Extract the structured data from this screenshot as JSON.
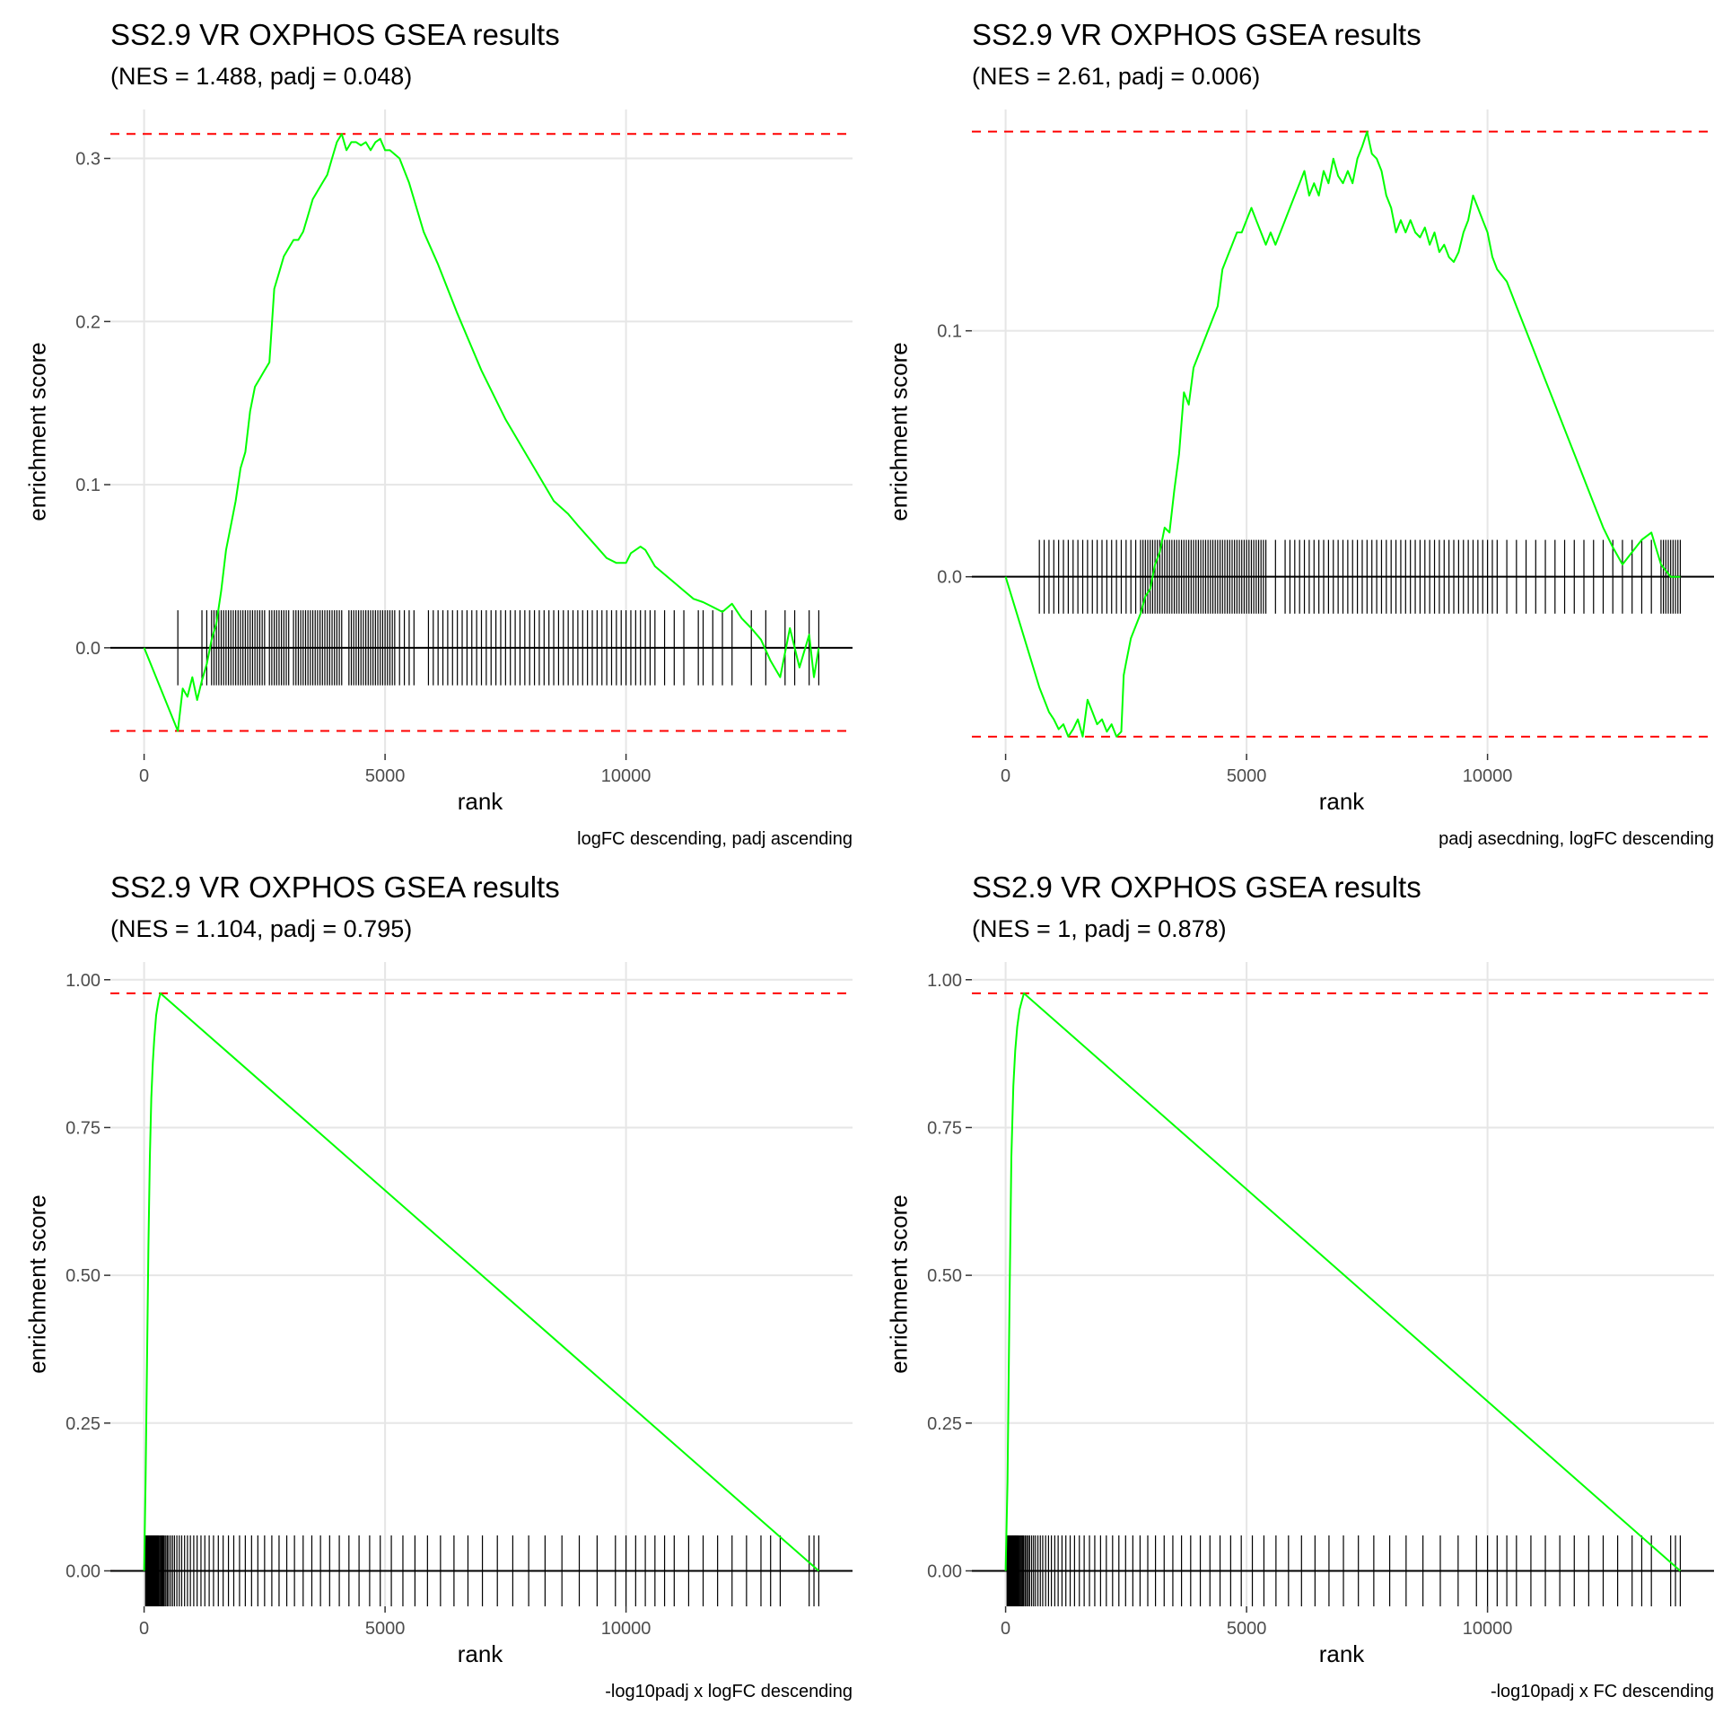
{
  "figure": {
    "colors": {
      "curve": "#00ff00",
      "bounds": "#ff0000",
      "ticks": "#000000",
      "grid": "#e6e6e6",
      "axis_text": "#4d4d4d"
    }
  },
  "chart_data": [
    {
      "type": "line",
      "title": "SS2.9 VR OXPHOS GSEA results",
      "subtitle": "(NES = 1.488, padj = 0.048)",
      "xlabel": "rank",
      "ylabel": "enrichment score",
      "caption": "logFC descending, padj ascending",
      "xlim": [
        -700,
        14700
      ],
      "ylim": [
        -0.065,
        0.33
      ],
      "xticks": [
        0,
        5000,
        10000
      ],
      "xtick_labels": [
        "0",
        "5000",
        "10000"
      ],
      "yticks": [
        0.0,
        0.1,
        0.2,
        0.3
      ],
      "ytick_labels": [
        "0.0",
        "0.1",
        "0.2",
        "0.3"
      ],
      "max_es": 0.315,
      "min_es": -0.051,
      "tick_halfheight": 0.023,
      "curve": {
        "x": [
          0,
          700,
          800,
          900,
          1000,
          1100,
          1200,
          1300,
          1400,
          1500,
          1600,
          1700,
          1800,
          1900,
          2000,
          2100,
          2200,
          2300,
          2400,
          2500,
          2600,
          2700,
          2800,
          2900,
          3000,
          3100,
          3200,
          3300,
          3400,
          3500,
          3600,
          3700,
          3800,
          3900,
          4000,
          4100,
          4200,
          4300,
          4400,
          4500,
          4600,
          4700,
          4800,
          4900,
          5000,
          5100,
          5300,
          5500,
          5800,
          6100,
          6500,
          7000,
          7500,
          8000,
          8500,
          8800,
          9000,
          9300,
          9600,
          9800,
          10000,
          10100,
          10200,
          10300,
          10400,
          10500,
          10600,
          10800,
          11000,
          11200,
          11400,
          11600,
          11800,
          12000,
          12200,
          12400,
          12600,
          12800,
          13000,
          13200,
          13400,
          13600,
          13800,
          13900,
          14000
        ],
        "y": [
          0.0,
          -0.051,
          -0.025,
          -0.03,
          -0.018,
          -0.032,
          -0.02,
          -0.01,
          0.005,
          0.015,
          0.035,
          0.06,
          0.075,
          0.09,
          0.11,
          0.12,
          0.145,
          0.16,
          0.165,
          0.17,
          0.175,
          0.22,
          0.23,
          0.24,
          0.245,
          0.25,
          0.25,
          0.255,
          0.265,
          0.275,
          0.28,
          0.285,
          0.29,
          0.3,
          0.31,
          0.315,
          0.305,
          0.31,
          0.31,
          0.308,
          0.31,
          0.305,
          0.31,
          0.312,
          0.305,
          0.305,
          0.3,
          0.285,
          0.255,
          0.235,
          0.205,
          0.17,
          0.14,
          0.115,
          0.09,
          0.082,
          0.075,
          0.065,
          0.055,
          0.052,
          0.052,
          0.058,
          0.06,
          0.062,
          0.06,
          0.055,
          0.05,
          0.045,
          0.04,
          0.035,
          0.03,
          0.028,
          0.025,
          0.022,
          0.027,
          0.018,
          0.012,
          0.005,
          -0.008,
          -0.018,
          0.012,
          -0.012,
          0.008,
          -0.018,
          0.0
        ]
      },
      "ticks_x": [
        700,
        1200,
        1300,
        1400,
        1450,
        1500,
        1550,
        1600,
        1650,
        1700,
        1750,
        1800,
        1850,
        1900,
        1950,
        2000,
        2050,
        2100,
        2150,
        2200,
        2250,
        2300,
        2350,
        2400,
        2450,
        2500,
        2600,
        2650,
        2700,
        2750,
        2800,
        2850,
        2900,
        2950,
        3000,
        3100,
        3150,
        3200,
        3250,
        3300,
        3350,
        3400,
        3450,
        3500,
        3550,
        3600,
        3650,
        3700,
        3750,
        3800,
        3850,
        3900,
        3950,
        4000,
        4050,
        4100,
        4250,
        4300,
        4350,
        4400,
        4450,
        4500,
        4550,
        4600,
        4650,
        4700,
        4750,
        4800,
        4850,
        4900,
        4950,
        5000,
        5050,
        5100,
        5150,
        5200,
        5300,
        5400,
        5500,
        5600,
        5900,
        6000,
        6100,
        6200,
        6300,
        6400,
        6500,
        6600,
        6700,
        6800,
        6900,
        7000,
        7100,
        7200,
        7300,
        7400,
        7500,
        7600,
        7700,
        7800,
        7900,
        8000,
        8100,
        8200,
        8300,
        8400,
        8500,
        8600,
        8700,
        8800,
        8900,
        9000,
        9100,
        9200,
        9300,
        9400,
        9500,
        9600,
        9700,
        9800,
        9900,
        10000,
        10100,
        10200,
        10300,
        10400,
        10500,
        10600,
        10800,
        11000,
        11200,
        11500,
        11600,
        11800,
        12000,
        12200,
        12600,
        12900,
        13300,
        13500,
        13800,
        14000
      ]
    },
    {
      "type": "line",
      "title": "SS2.9 VR OXPHOS GSEA results",
      "subtitle": "(NES = 2.61, padj = 0.006)",
      "xlabel": "rank",
      "ylabel": "enrichment score",
      "caption": "padj asecdning, logFC descending",
      "xlim": [
        -700,
        14700
      ],
      "ylim": [
        -0.072,
        0.19
      ],
      "xticks": [
        0,
        5000,
        10000
      ],
      "xtick_labels": [
        "0",
        "5000",
        "10000"
      ],
      "yticks": [
        0.0,
        0.1
      ],
      "ytick_labels": [
        "0.0",
        "0.1"
      ],
      "max_es": 0.181,
      "min_es": -0.065,
      "tick_halfheight": 0.015,
      "curve": {
        "x": [
          0,
          700,
          800,
          900,
          1000,
          1100,
          1200,
          1300,
          1400,
          1500,
          1600,
          1700,
          1800,
          1900,
          2000,
          2100,
          2200,
          2300,
          2400,
          2450,
          2500,
          2600,
          2700,
          2800,
          2900,
          3000,
          3100,
          3200,
          3300,
          3400,
          3500,
          3600,
          3700,
          3800,
          3900,
          4000,
          4100,
          4200,
          4300,
          4400,
          4500,
          4600,
          4700,
          4800,
          4900,
          5000,
          5100,
          5200,
          5300,
          5400,
          5500,
          5600,
          5700,
          5800,
          5900,
          6000,
          6100,
          6200,
          6300,
          6400,
          6500,
          6600,
          6700,
          6800,
          6900,
          7000,
          7100,
          7200,
          7300,
          7400,
          7500,
          7600,
          7700,
          7800,
          7900,
          8000,
          8100,
          8200,
          8300,
          8400,
          8500,
          8600,
          8700,
          8800,
          8900,
          9000,
          9100,
          9200,
          9300,
          9400,
          9500,
          9600,
          9700,
          9800,
          9900,
          10000,
          10100,
          10200,
          10400,
          10600,
          10800,
          11000,
          11200,
          11400,
          11600,
          11800,
          12000,
          12200,
          12400,
          12600,
          12800,
          13000,
          13200,
          13400,
          13600,
          13800,
          14000
        ],
        "y": [
          0.0,
          -0.045,
          -0.05,
          -0.055,
          -0.058,
          -0.062,
          -0.06,
          -0.065,
          -0.062,
          -0.058,
          -0.065,
          -0.05,
          -0.055,
          -0.06,
          -0.058,
          -0.063,
          -0.06,
          -0.065,
          -0.063,
          -0.04,
          -0.035,
          -0.025,
          -0.02,
          -0.015,
          -0.008,
          -0.005,
          0.005,
          0.01,
          0.02,
          0.018,
          0.035,
          0.05,
          0.075,
          0.07,
          0.085,
          0.09,
          0.095,
          0.1,
          0.105,
          0.11,
          0.125,
          0.13,
          0.135,
          0.14,
          0.14,
          0.145,
          0.15,
          0.145,
          0.14,
          0.135,
          0.14,
          0.135,
          0.14,
          0.145,
          0.15,
          0.155,
          0.16,
          0.165,
          0.155,
          0.16,
          0.155,
          0.165,
          0.16,
          0.17,
          0.163,
          0.16,
          0.165,
          0.16,
          0.17,
          0.175,
          0.181,
          0.172,
          0.17,
          0.165,
          0.155,
          0.15,
          0.14,
          0.145,
          0.14,
          0.145,
          0.14,
          0.138,
          0.142,
          0.135,
          0.14,
          0.132,
          0.135,
          0.13,
          0.128,
          0.132,
          0.14,
          0.145,
          0.155,
          0.15,
          0.145,
          0.14,
          0.13,
          0.125,
          0.12,
          0.11,
          0.1,
          0.09,
          0.08,
          0.07,
          0.06,
          0.05,
          0.04,
          0.03,
          0.02,
          0.012,
          0.005,
          0.01,
          0.015,
          0.018,
          0.005,
          0.0,
          0.0
        ]
      },
      "ticks_x": [
        700,
        800,
        900,
        1000,
        1100,
        1200,
        1300,
        1400,
        1500,
        1600,
        1700,
        1800,
        1900,
        2000,
        2100,
        2200,
        2300,
        2400,
        2500,
        2600,
        2700,
        2800,
        2850,
        2900,
        2950,
        3000,
        3050,
        3100,
        3150,
        3200,
        3250,
        3300,
        3350,
        3400,
        3450,
        3500,
        3550,
        3600,
        3650,
        3700,
        3750,
        3800,
        3850,
        3900,
        3950,
        4000,
        4050,
        4100,
        4150,
        4200,
        4250,
        4300,
        4350,
        4400,
        4450,
        4500,
        4550,
        4600,
        4650,
        4700,
        4750,
        4800,
        4850,
        4900,
        4950,
        5000,
        5050,
        5100,
        5150,
        5200,
        5250,
        5300,
        5350,
        5400,
        5600,
        5800,
        5900,
        6000,
        6100,
        6200,
        6300,
        6400,
        6500,
        6600,
        6700,
        6800,
        6900,
        7000,
        7100,
        7200,
        7300,
        7400,
        7500,
        7600,
        7700,
        7800,
        7900,
        8000,
        8100,
        8200,
        8300,
        8400,
        8500,
        8600,
        8700,
        8800,
        8900,
        9000,
        9100,
        9200,
        9300,
        9400,
        9500,
        9600,
        9700,
        9800,
        9900,
        10000,
        10100,
        10200,
        10400,
        10600,
        10800,
        11000,
        11200,
        11400,
        11600,
        11800,
        12000,
        12200,
        12400,
        12600,
        12800,
        13000,
        13200,
        13400,
        13600,
        13650,
        13700,
        13750,
        13800,
        13850,
        13900,
        13950,
        14000
      ]
    },
    {
      "type": "line",
      "title": "SS2.9 VR OXPHOS GSEA results",
      "subtitle": "(NES = 1.104, padj = 0.795)",
      "xlabel": "rank",
      "ylabel": "enrichment score",
      "caption": "-log10padj x logFC descending",
      "xlim": [
        -700,
        14700
      ],
      "ylim": [
        -0.06,
        1.03
      ],
      "xticks": [
        0,
        5000,
        10000
      ],
      "xtick_labels": [
        "0",
        "5000",
        "10000"
      ],
      "yticks": [
        0.0,
        0.25,
        0.5,
        0.75,
        1.0
      ],
      "ytick_labels": [
        "0.00",
        "0.25",
        "0.50",
        "0.75",
        "1.00"
      ],
      "max_es": 0.977,
      "min_es": 0.0,
      "tick_halfheight": 0.06,
      "curve": {
        "x": [
          0,
          30,
          60,
          90,
          120,
          150,
          180,
          210,
          250,
          300,
          340,
          14000
        ],
        "y": [
          0.0,
          0.15,
          0.35,
          0.55,
          0.7,
          0.8,
          0.86,
          0.9,
          0.94,
          0.965,
          0.977,
          0.0
        ]
      },
      "ticks_x": [
        30,
        40,
        50,
        60,
        70,
        80,
        90,
        100,
        110,
        120,
        130,
        140,
        150,
        160,
        170,
        180,
        190,
        200,
        210,
        220,
        230,
        240,
        250,
        260,
        270,
        280,
        290,
        300,
        320,
        340,
        360,
        380,
        400,
        420,
        450,
        480,
        510,
        550,
        590,
        630,
        680,
        730,
        780,
        840,
        900,
        960,
        1030,
        1100,
        1180,
        1260,
        1350,
        1440,
        1540,
        1640,
        1750,
        1860,
        1980,
        2100,
        2230,
        2360,
        2500,
        2650,
        2800,
        2960,
        3120,
        3300,
        3480,
        3660,
        3850,
        4050,
        4250,
        4460,
        4680,
        4900,
        5130,
        5370,
        5620,
        5880,
        6150,
        6430,
        6720,
        7020,
        7330,
        7650,
        7980,
        8320,
        8670,
        9030,
        9400,
        9780,
        10000,
        10200,
        10400,
        10600,
        10800,
        11000,
        11300,
        11600,
        11900,
        12200,
        12500,
        12800,
        13000,
        13200,
        13800,
        13900,
        14000
      ]
    },
    {
      "type": "line",
      "title": "SS2.9 VR OXPHOS GSEA results",
      "subtitle": "(NES = 1, padj = 0.878)",
      "xlabel": "rank",
      "ylabel": "enrichment score",
      "caption": "-log10padj x FC descending",
      "xlim": [
        -700,
        14700
      ],
      "ylim": [
        -0.06,
        1.03
      ],
      "xticks": [
        0,
        5000,
        10000
      ],
      "xtick_labels": [
        "0",
        "5000",
        "10000"
      ],
      "yticks": [
        0.0,
        0.25,
        0.5,
        0.75,
        1.0
      ],
      "ytick_labels": [
        "0.00",
        "0.25",
        "0.50",
        "0.75",
        "1.00"
      ],
      "max_es": 0.977,
      "min_es": 0.0,
      "tick_halfheight": 0.06,
      "curve": {
        "x": [
          0,
          40,
          80,
          120,
          160,
          200,
          240,
          290,
          340,
          380,
          14000
        ],
        "y": [
          0.0,
          0.15,
          0.45,
          0.7,
          0.82,
          0.88,
          0.92,
          0.95,
          0.965,
          0.977,
          0.0
        ]
      },
      "ticks_x": [
        30,
        40,
        50,
        60,
        70,
        80,
        90,
        100,
        110,
        120,
        130,
        140,
        150,
        160,
        170,
        180,
        190,
        200,
        210,
        220,
        230,
        240,
        250,
        260,
        280,
        300,
        320,
        340,
        360,
        380,
        410,
        440,
        470,
        500,
        540,
        580,
        620,
        670,
        720,
        770,
        830,
        890,
        950,
        1020,
        1090,
        1170,
        1250,
        1340,
        1430,
        1530,
        1630,
        1740,
        1850,
        1970,
        2090,
        2220,
        2350,
        2490,
        2640,
        2790,
        2950,
        3110,
        3290,
        3470,
        3650,
        3840,
        4040,
        4240,
        4450,
        4670,
        4890,
        5120,
        5360,
        5610,
        5870,
        6140,
        6420,
        6710,
        7010,
        7320,
        7640,
        7970,
        8310,
        8660,
        9020,
        9390,
        9770,
        10000,
        10200,
        10400,
        10600,
        10900,
        11200,
        11500,
        11800,
        12100,
        12400,
        12700,
        13000,
        13200,
        13400,
        13800,
        13900,
        14000
      ]
    }
  ]
}
